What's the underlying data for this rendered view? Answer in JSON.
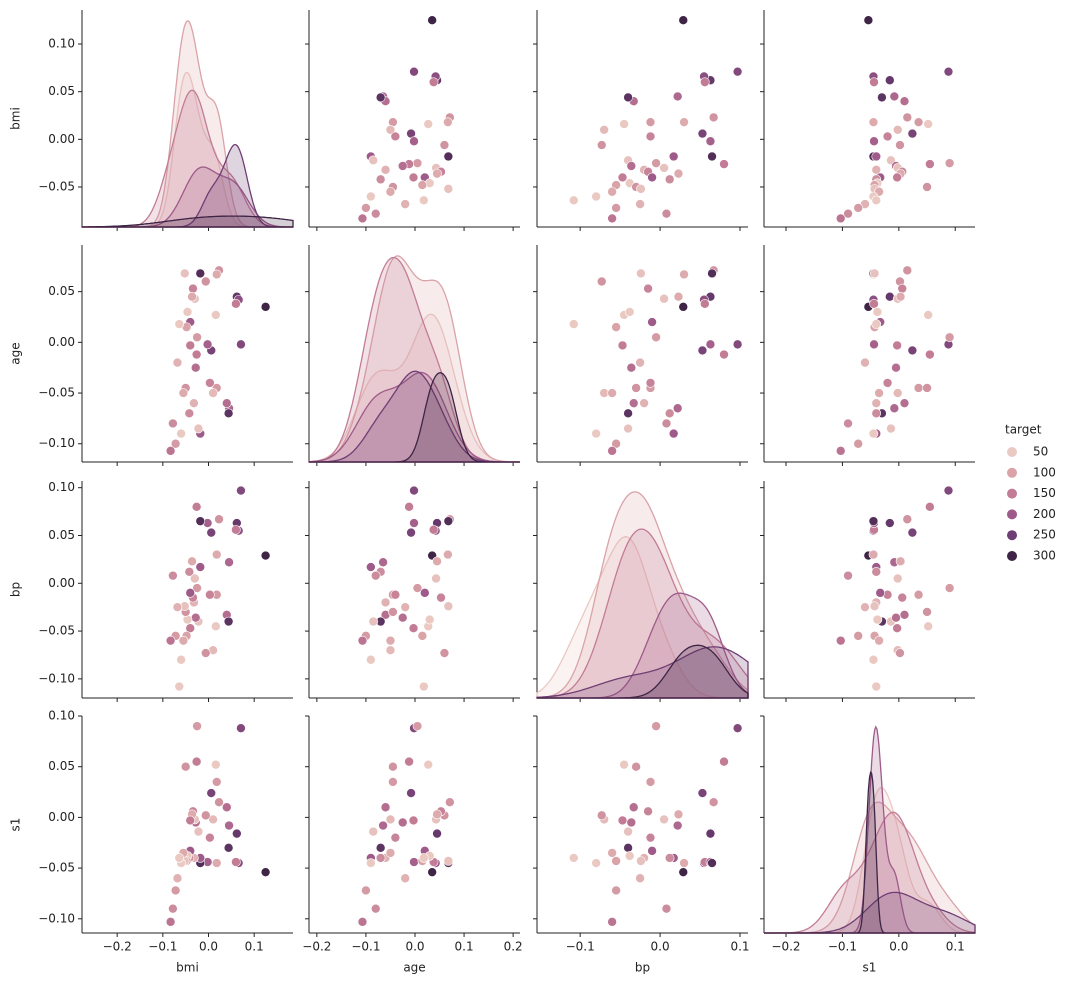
{
  "chart_data": {
    "type": "pairplot",
    "variables": [
      {
        "name": "bmi",
        "xlim": [
          -0.277,
          0.185
        ],
        "xticks": [
          {
            "value": -0.2,
            "label": "−0.2"
          },
          {
            "value": -0.1,
            "label": "−0.1"
          },
          {
            "value": 0,
            "label": "0.0"
          },
          {
            "value": 0.1,
            "label": "0.1"
          }
        ],
        "ylim": [
          -0.092,
          0.1357
        ],
        "yticks": [
          {
            "value": -0.05,
            "label": "−0.05"
          },
          {
            "value": 0,
            "label": "0.00"
          },
          {
            "value": 0.05,
            "label": "0.05"
          },
          {
            "value": 0.1,
            "label": "0.10"
          }
        ]
      },
      {
        "name": "age",
        "xlim": [
          -0.216,
          0.214
        ],
        "xticks": [
          {
            "value": -0.2,
            "label": "−0.2"
          },
          {
            "value": -0.1,
            "label": "−0.1"
          },
          {
            "value": 0,
            "label": "0.0"
          },
          {
            "value": 0.1,
            "label": "0.1"
          },
          {
            "value": 0.2,
            "label": "0.2"
          }
        ],
        "ylim": [
          -0.118,
          0.096
        ],
        "yticks": [
          {
            "value": -0.1,
            "label": "−0.10"
          },
          {
            "value": -0.05,
            "label": "−0.05"
          },
          {
            "value": 0,
            "label": "0.00"
          },
          {
            "value": 0.05,
            "label": "0.05"
          }
        ]
      },
      {
        "name": "bp",
        "xlim": [
          -0.154,
          0.11
        ],
        "xticks": [
          {
            "value": -0.1,
            "label": "−0.1"
          },
          {
            "value": 0,
            "label": "0.0"
          },
          {
            "value": 0.1,
            "label": "0.1"
          }
        ],
        "ylim": [
          -0.12,
          0.107
        ],
        "yticks": [
          {
            "value": -0.1,
            "label": "−0.10"
          },
          {
            "value": -0.05,
            "label": "−0.05"
          },
          {
            "value": 0,
            "label": "0.00"
          },
          {
            "value": 0.05,
            "label": "0.05"
          },
          {
            "value": 0.1,
            "label": "0.10"
          }
        ]
      },
      {
        "name": "s1",
        "xlim": [
          -0.239,
          0.135
        ],
        "xticks": [
          {
            "value": -0.2,
            "label": "−0.2"
          },
          {
            "value": -0.1,
            "label": "−0.1"
          },
          {
            "value": 0,
            "label": "0.0"
          },
          {
            "value": 0.1,
            "label": "0.1"
          }
        ],
        "ylim": [
          -0.114,
          0.1
        ],
        "yticks": [
          {
            "value": -0.1,
            "label": "−0.10"
          },
          {
            "value": -0.05,
            "label": "−0.05"
          },
          {
            "value": 0,
            "label": "0.00"
          },
          {
            "value": 0.05,
            "label": "0.05"
          },
          {
            "value": 0.1,
            "label": "0.10"
          }
        ]
      }
    ],
    "hue": {
      "title": "target",
      "levels": [
        50,
        100,
        150,
        200,
        250,
        300
      ],
      "colors": [
        "#ebc9c3",
        "#d9a3a8",
        "#c27c95",
        "#9e5a89",
        "#6f3e74",
        "#3e2445"
      ]
    },
    "samples": {
      "bmi": [
        0.125,
        0.071,
        0.062,
        0.066,
        0.06,
        0.045,
        0.04,
        0.044,
        0.023,
        0.018,
        0.018,
        0.016,
        0.01,
        0.006,
        0.003,
        -0.002,
        -0.006,
        -0.018,
        -0.018,
        -0.022,
        -0.025,
        -0.026,
        -0.028,
        -0.03,
        -0.032,
        -0.034,
        -0.036,
        -0.04,
        -0.04,
        -0.042,
        -0.046,
        -0.048,
        -0.05,
        -0.052,
        -0.055,
        -0.06,
        -0.064,
        -0.068,
        -0.072,
        -0.078,
        -0.083
      ],
      "age": [
        0.035,
        -0.002,
        0.045,
        0.042,
        0.038,
        -0.065,
        -0.06,
        -0.07,
        0.071,
        0.067,
        -0.045,
        0.027,
        -0.05,
        -0.008,
        -0.04,
        -0.002,
        0.06,
        0.068,
        -0.09,
        -0.085,
        0.005,
        -0.012,
        -0.025,
        0.043,
        -0.06,
        0.053,
        0.045,
        0.02,
        -0.003,
        -0.07,
        0.03,
        0.015,
        -0.045,
        0.068,
        -0.05,
        -0.09,
        0.018,
        -0.02,
        -0.1,
        -0.08,
        -0.107
      ],
      "bp": [
        0.029,
        0.097,
        0.063,
        0.055,
        0.056,
        0.022,
        -0.033,
        -0.04,
        0.067,
        0.03,
        -0.012,
        -0.045,
        -0.07,
        0.053,
        -0.012,
        0.063,
        -0.073,
        0.065,
        0.017,
        -0.04,
        -0.005,
        0.08,
        -0.036,
        0.005,
        -0.02,
        -0.015,
        0.023,
        -0.01,
        -0.047,
        0.012,
        -0.038,
        -0.055,
        -0.03,
        -0.024,
        -0.06,
        -0.08,
        -0.108,
        -0.025,
        -0.055,
        0.008,
        -0.06
      ],
      "s1": [
        -0.054,
        0.088,
        -0.016,
        -0.045,
        -0.044,
        -0.008,
        0.01,
        -0.03,
        0.015,
        -0.045,
        0.035,
        0.052,
        -0.002,
        0.024,
        -0.02,
        -0.044,
        0.002,
        -0.045,
        -0.04,
        -0.014,
        0.09,
        0.055,
        -0.005,
        -0.002,
        -0.04,
        0.006,
        0.003,
        -0.033,
        -0.003,
        -0.04,
        -0.038,
        -0.043,
        0.05,
        -0.043,
        -0.035,
        -0.045,
        -0.04,
        -0.06,
        -0.072,
        -0.09,
        -0.103
      ],
      "target": [
        310,
        230,
        260,
        220,
        150,
        180,
        170,
        270,
        120,
        90,
        110,
        50,
        70,
        240,
        140,
        190,
        120,
        280,
        200,
        60,
        110,
        150,
        170,
        60,
        80,
        140,
        90,
        200,
        150,
        130,
        50,
        100,
        120,
        60,
        90,
        50,
        40,
        80,
        110,
        130,
        160
      ]
    }
  }
}
